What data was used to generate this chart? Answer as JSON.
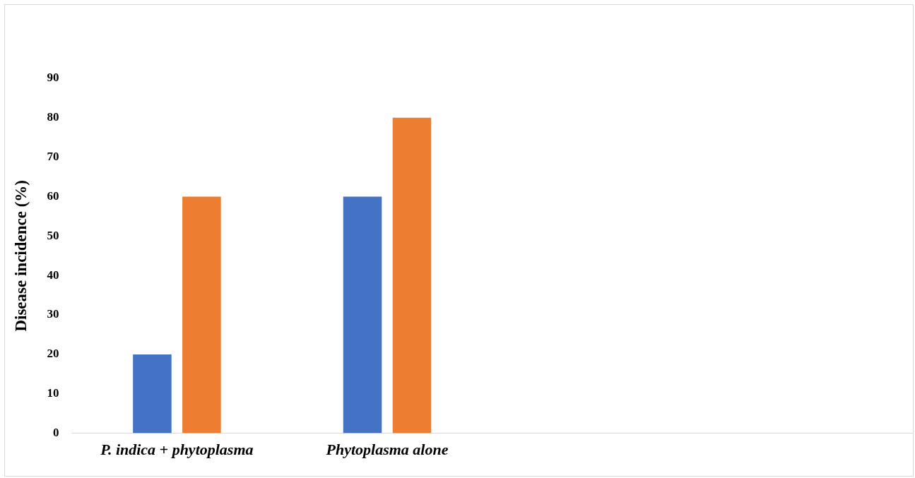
{
  "chart_data": {
    "type": "bar",
    "ylabel": "Disease incidence (%)",
    "categories": [
      "P. indica + phytoplasma",
      "Phytoplasma alone",
      null,
      null
    ],
    "series": [
      {
        "color": "#4472c4",
        "values": [
          20,
          60,
          null,
          null
        ]
      },
      {
        "color": "#ed7d31",
        "values": [
          60,
          80,
          null,
          null
        ]
      }
    ],
    "ylim": [
      0,
      90
    ],
    "yticks": [
      0,
      10,
      20,
      30,
      40,
      50,
      60,
      70,
      80,
      90
    ],
    "grid": false,
    "legend": false
  }
}
